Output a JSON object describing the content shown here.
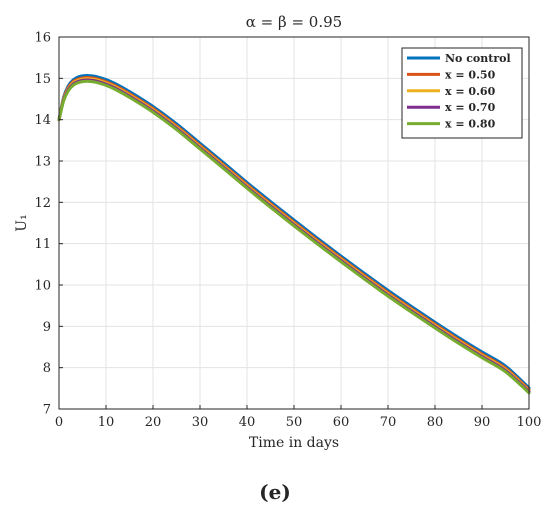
{
  "chart_data": {
    "type": "line",
    "title": "α = β = 0.95",
    "xlabel": "Time in days",
    "ylabel": "U₁",
    "xlim": [
      0,
      100
    ],
    "ylim": [
      7,
      16
    ],
    "xticks": [
      "0",
      "10",
      "20",
      "30",
      "40",
      "50",
      "60",
      "70",
      "80",
      "90",
      "100"
    ],
    "yticks": [
      "7",
      "8",
      "9",
      "10",
      "11",
      "12",
      "13",
      "14",
      "15",
      "16"
    ],
    "grid": true,
    "legend_position": "top-right",
    "x": [
      0,
      1,
      2,
      3,
      4,
      5,
      6,
      7,
      8,
      10,
      12,
      15,
      20,
      25,
      30,
      35,
      40,
      45,
      50,
      55,
      60,
      65,
      70,
      75,
      80,
      85,
      90,
      95,
      100
    ],
    "series": [
      {
        "name": "No control",
        "color": "#0072BD",
        "values": [
          14.0,
          14.55,
          14.82,
          14.96,
          15.03,
          15.06,
          15.07,
          15.06,
          15.04,
          14.97,
          14.87,
          14.68,
          14.32,
          13.9,
          13.43,
          12.96,
          12.48,
          12.02,
          11.57,
          11.13,
          10.7,
          10.28,
          9.87,
          9.48,
          9.1,
          8.73,
          8.38,
          8.04,
          7.51
        ]
      },
      {
        "name": "x = 0.50",
        "color": "#D95319",
        "values": [
          14.0,
          14.52,
          14.78,
          14.92,
          14.98,
          15.01,
          15.02,
          15.01,
          14.99,
          14.92,
          14.82,
          14.63,
          14.27,
          13.85,
          13.38,
          12.91,
          12.43,
          11.97,
          11.52,
          11.08,
          10.65,
          10.23,
          9.82,
          9.43,
          9.05,
          8.68,
          8.33,
          7.99,
          7.47
        ]
      },
      {
        "name": "x = 0.60",
        "color": "#EDB120",
        "values": [
          14.0,
          14.5,
          14.75,
          14.89,
          14.95,
          14.98,
          14.99,
          14.98,
          14.96,
          14.89,
          14.79,
          14.6,
          14.24,
          13.82,
          13.35,
          12.88,
          12.4,
          11.94,
          11.49,
          11.05,
          10.62,
          10.2,
          9.79,
          9.4,
          9.02,
          8.65,
          8.3,
          7.96,
          7.44
        ]
      },
      {
        "name": "x = 0.70",
        "color": "#7E2F8E",
        "values": [
          14.0,
          14.48,
          14.73,
          14.86,
          14.92,
          14.95,
          14.96,
          14.95,
          14.93,
          14.86,
          14.76,
          14.57,
          14.21,
          13.79,
          13.32,
          12.85,
          12.37,
          11.91,
          11.46,
          11.02,
          10.59,
          10.17,
          9.76,
          9.37,
          8.99,
          8.62,
          8.27,
          7.93,
          7.42
        ]
      },
      {
        "name": "x = 0.80",
        "color": "#77AC30",
        "values": [
          14.0,
          14.46,
          14.7,
          14.83,
          14.89,
          14.92,
          14.93,
          14.92,
          14.9,
          14.83,
          14.73,
          14.54,
          14.18,
          13.76,
          13.29,
          12.82,
          12.34,
          11.88,
          11.43,
          10.99,
          10.56,
          10.14,
          9.73,
          9.34,
          8.96,
          8.59,
          8.24,
          7.9,
          7.39
        ]
      }
    ]
  },
  "panel_label": "(e)"
}
